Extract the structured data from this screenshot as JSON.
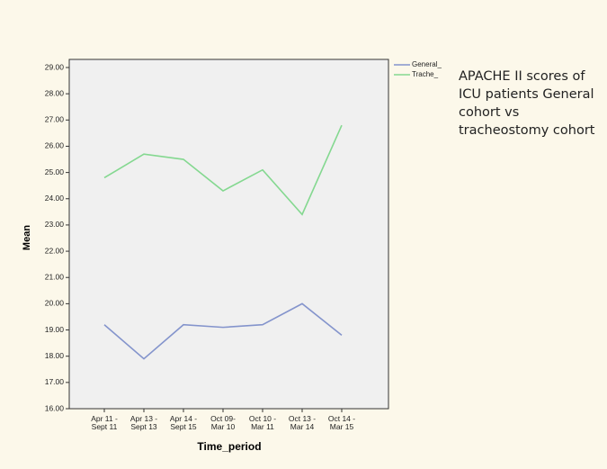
{
  "chart_data": {
    "type": "line",
    "x_label": "Time_period",
    "y_label": "Mean",
    "annotation": [
      "APACHE II scores of",
      "ICU patients General",
      "cohort vs",
      "tracheostomy cohort"
    ],
    "categories": [
      "Apr 11 - Sept 11",
      "Apr 13 - Sept 13",
      "Apr 14 - Sept 15",
      "Oct 09- Mar 10",
      "Oct 10 - Mar 11",
      "Oct 13 - Mar 14",
      "Oct 14 - Mar 15"
    ],
    "series": [
      {
        "name": "General_",
        "color": "#8494cc",
        "values": [
          19.2,
          17.9,
          19.2,
          19.1,
          19.2,
          20.0,
          18.8
        ]
      },
      {
        "name": "Trache_",
        "color": "#84d890",
        "values": [
          24.8,
          25.7,
          25.5,
          24.3,
          25.1,
          23.4,
          26.8
        ]
      }
    ],
    "ylim": [
      16,
      29
    ],
    "yticks": [
      {
        "value": 16,
        "label": "16.00"
      },
      {
        "value": 17,
        "label": "17.00"
      },
      {
        "value": 18,
        "label": "18.00"
      },
      {
        "value": 19,
        "label": "19.00"
      },
      {
        "value": 20,
        "label": "20.00"
      },
      {
        "value": 21,
        "label": "21.00"
      },
      {
        "value": 22,
        "label": "22.00"
      },
      {
        "value": 23,
        "label": "23.00"
      },
      {
        "value": 24,
        "label": "24.00"
      },
      {
        "value": 25,
        "label": "25.00"
      },
      {
        "value": 26,
        "label": "26.00"
      },
      {
        "value": 27,
        "label": "27.00"
      },
      {
        "value": 28,
        "label": "28.00"
      },
      {
        "value": 29,
        "label": "29.00"
      }
    ],
    "grid": false
  }
}
